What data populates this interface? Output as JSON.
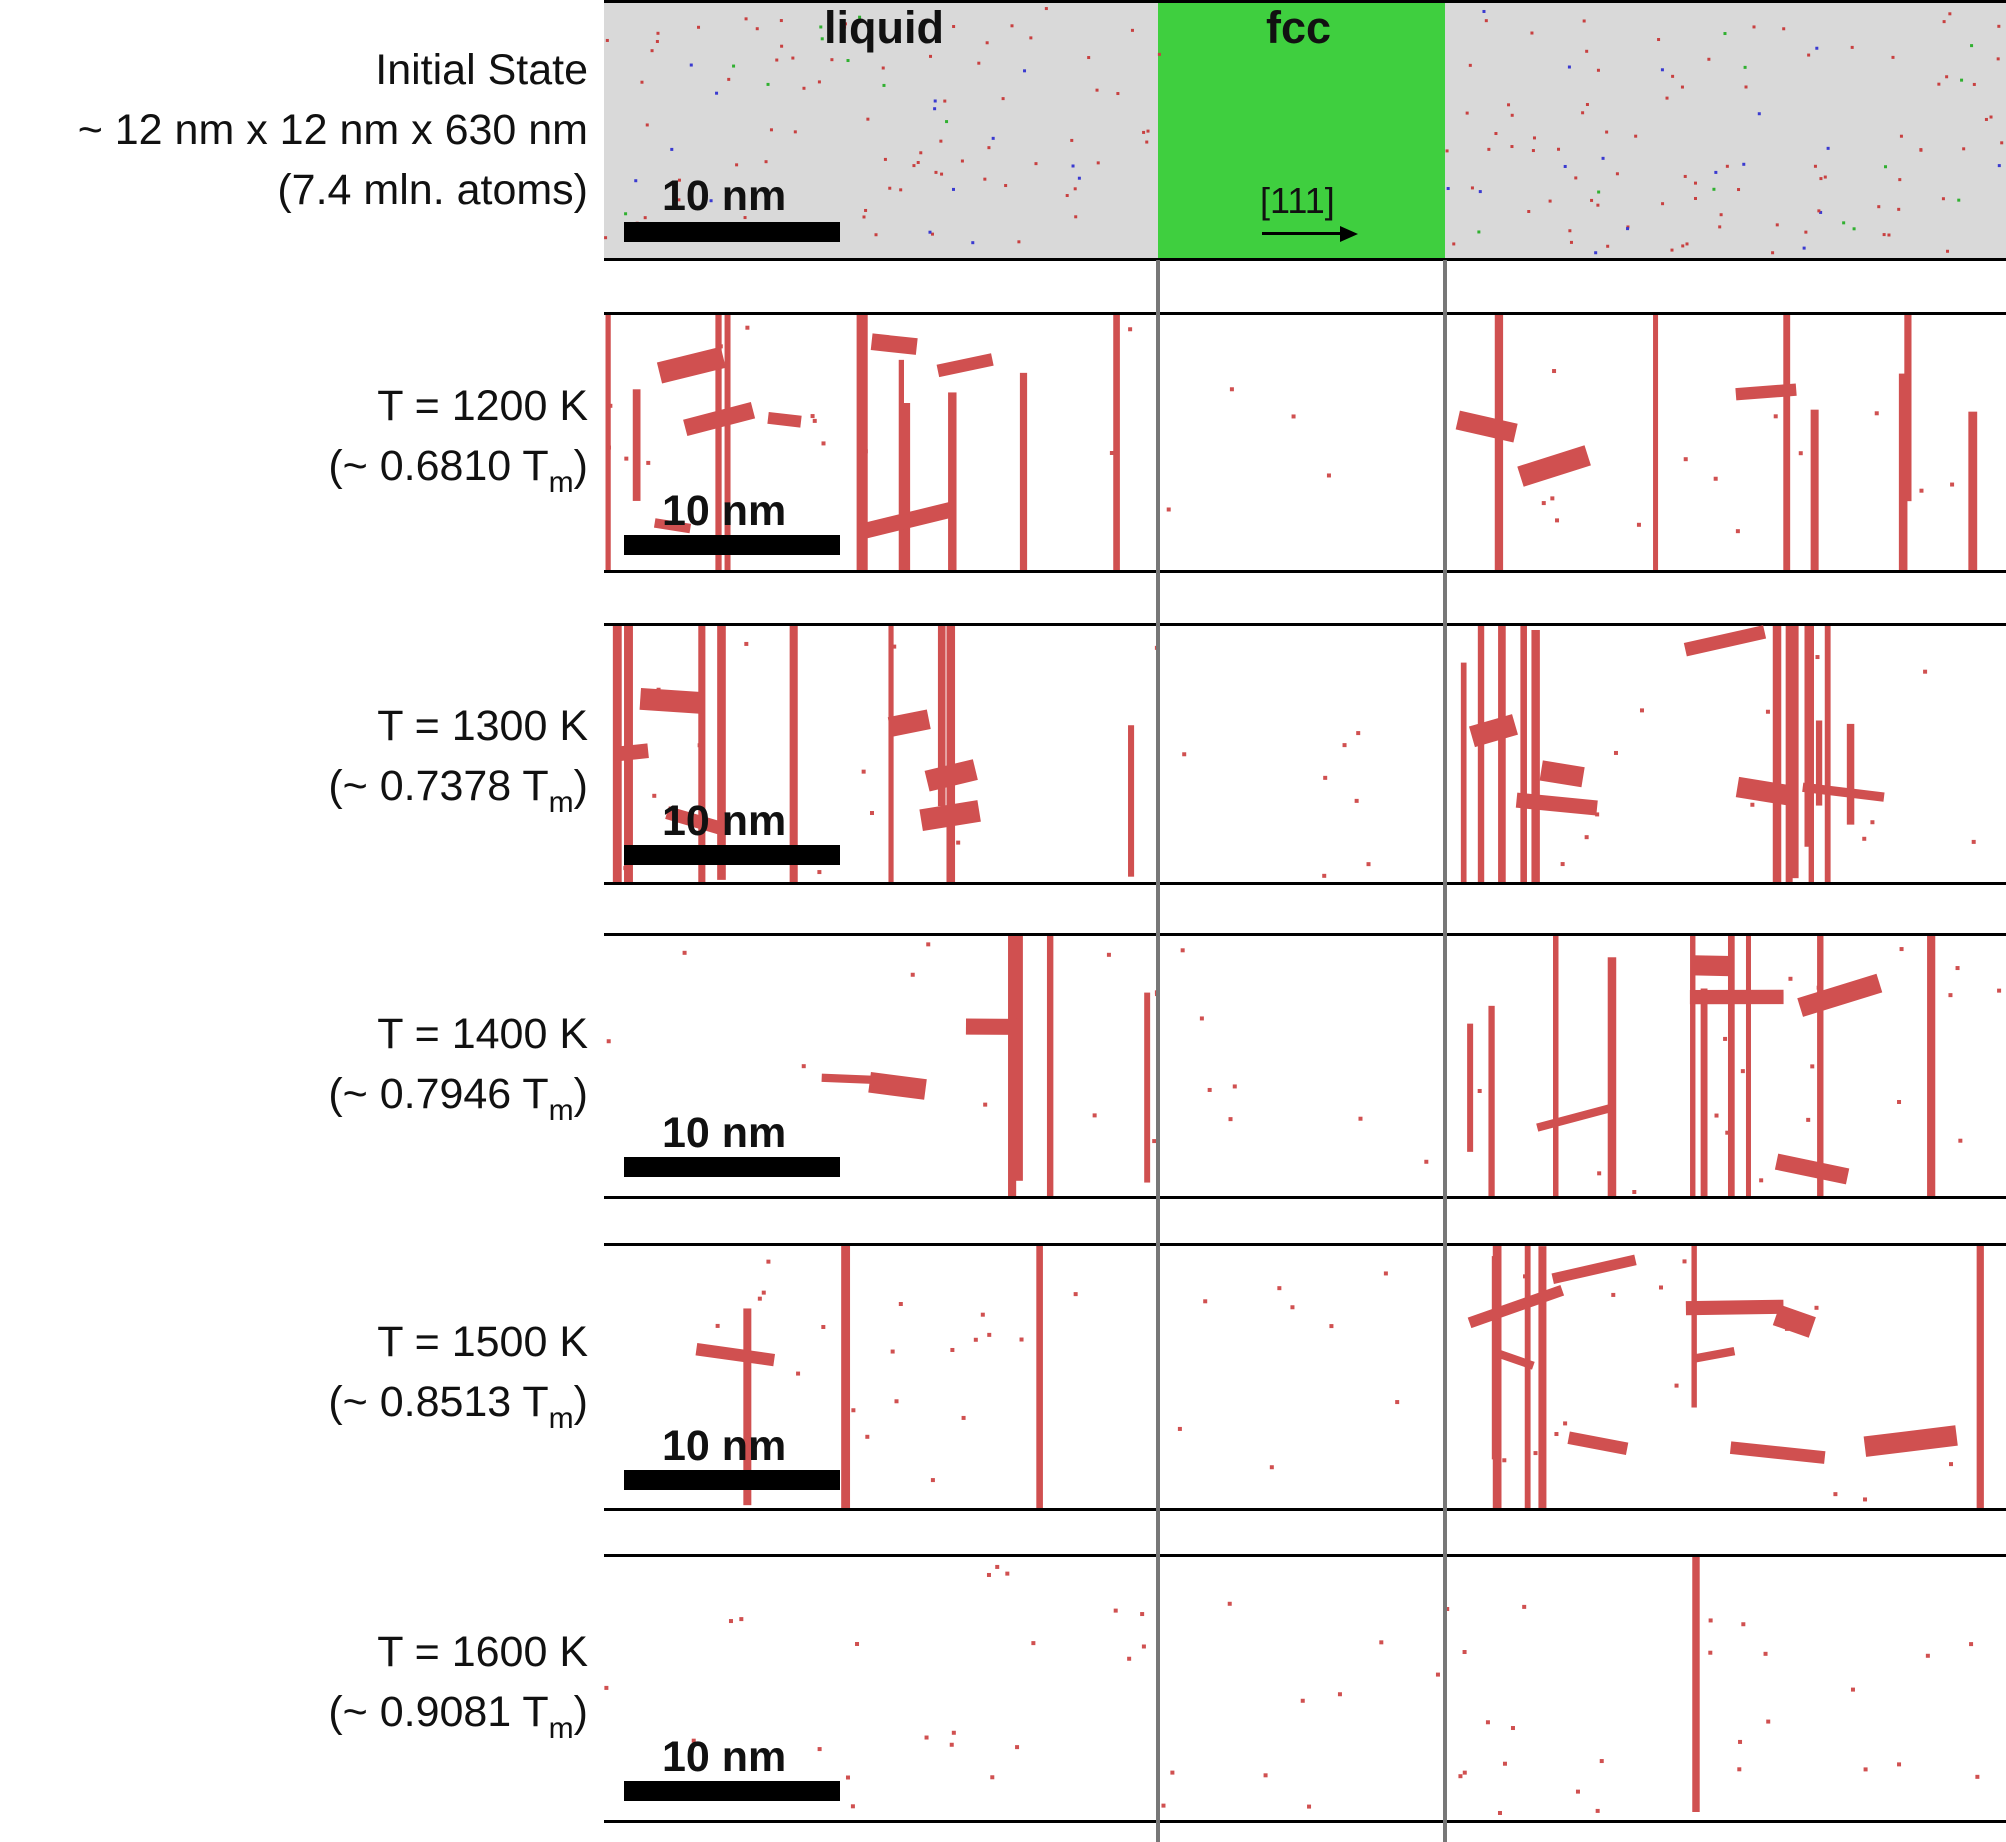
{
  "panels": [
    {
      "line1": "Initial State",
      "line2": "~ 12 nm x 12 nm x 630 nm",
      "line3": "(7.4 mln. atoms)"
    },
    {
      "line1": "T = 1200 K",
      "line2": "(~ 0.6810 T",
      "sub": "m",
      "close": ")"
    },
    {
      "line1": "T = 1300 K",
      "line2": "(~ 0.7378 T",
      "sub": "m",
      "close": ")"
    },
    {
      "line1": "T = 1400 K",
      "line2": "(~ 0.7946 T",
      "sub": "m",
      "close": ")"
    },
    {
      "line1": "T = 1500 K",
      "line2": "(~ 0.8513 T",
      "sub": "m",
      "close": ")"
    },
    {
      "line1": "T = 1600 K",
      "line2": "(~ 0.9081 T",
      "sub": "m",
      "close": ")"
    }
  ],
  "scale_label": "10 nm",
  "region_labels": {
    "left": "liquid",
    "middle": "fcc"
  },
  "direction_label": "[111]",
  "colors": {
    "liquid": "#d9d9d9",
    "fcc": "#3fcf3f",
    "defect": "#d05050",
    "divider": "#777777"
  }
}
